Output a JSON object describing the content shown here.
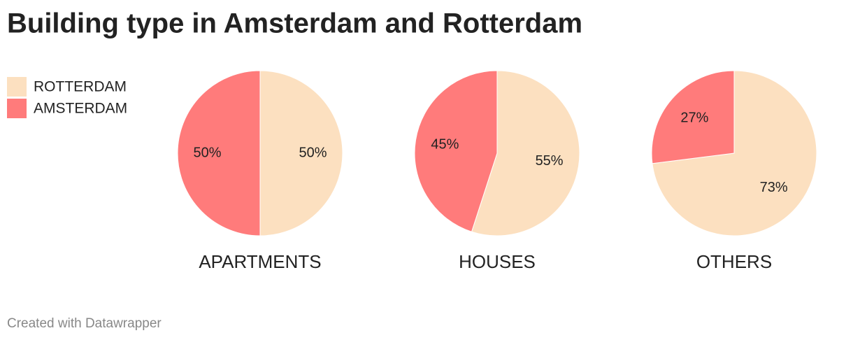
{
  "chart_data": {
    "type": "pie",
    "title": "Building type in Amsterdam and Rotterdam",
    "categories": [
      "APARTMENTS",
      "HOUSES",
      "OTHERS"
    ],
    "series": [
      {
        "name": "ROTTERDAM",
        "color": "#fce0c0",
        "values": [
          50,
          55,
          73
        ],
        "value_labels": [
          "50%",
          "55%",
          "73%"
        ]
      },
      {
        "name": "AMSTERDAM",
        "color": "#ff7b7b",
        "values": [
          50,
          45,
          27
        ],
        "value_labels": [
          "50%",
          "45%",
          "27%"
        ]
      }
    ],
    "legend": "top-left"
  },
  "footer": "Created with Datawrapper"
}
